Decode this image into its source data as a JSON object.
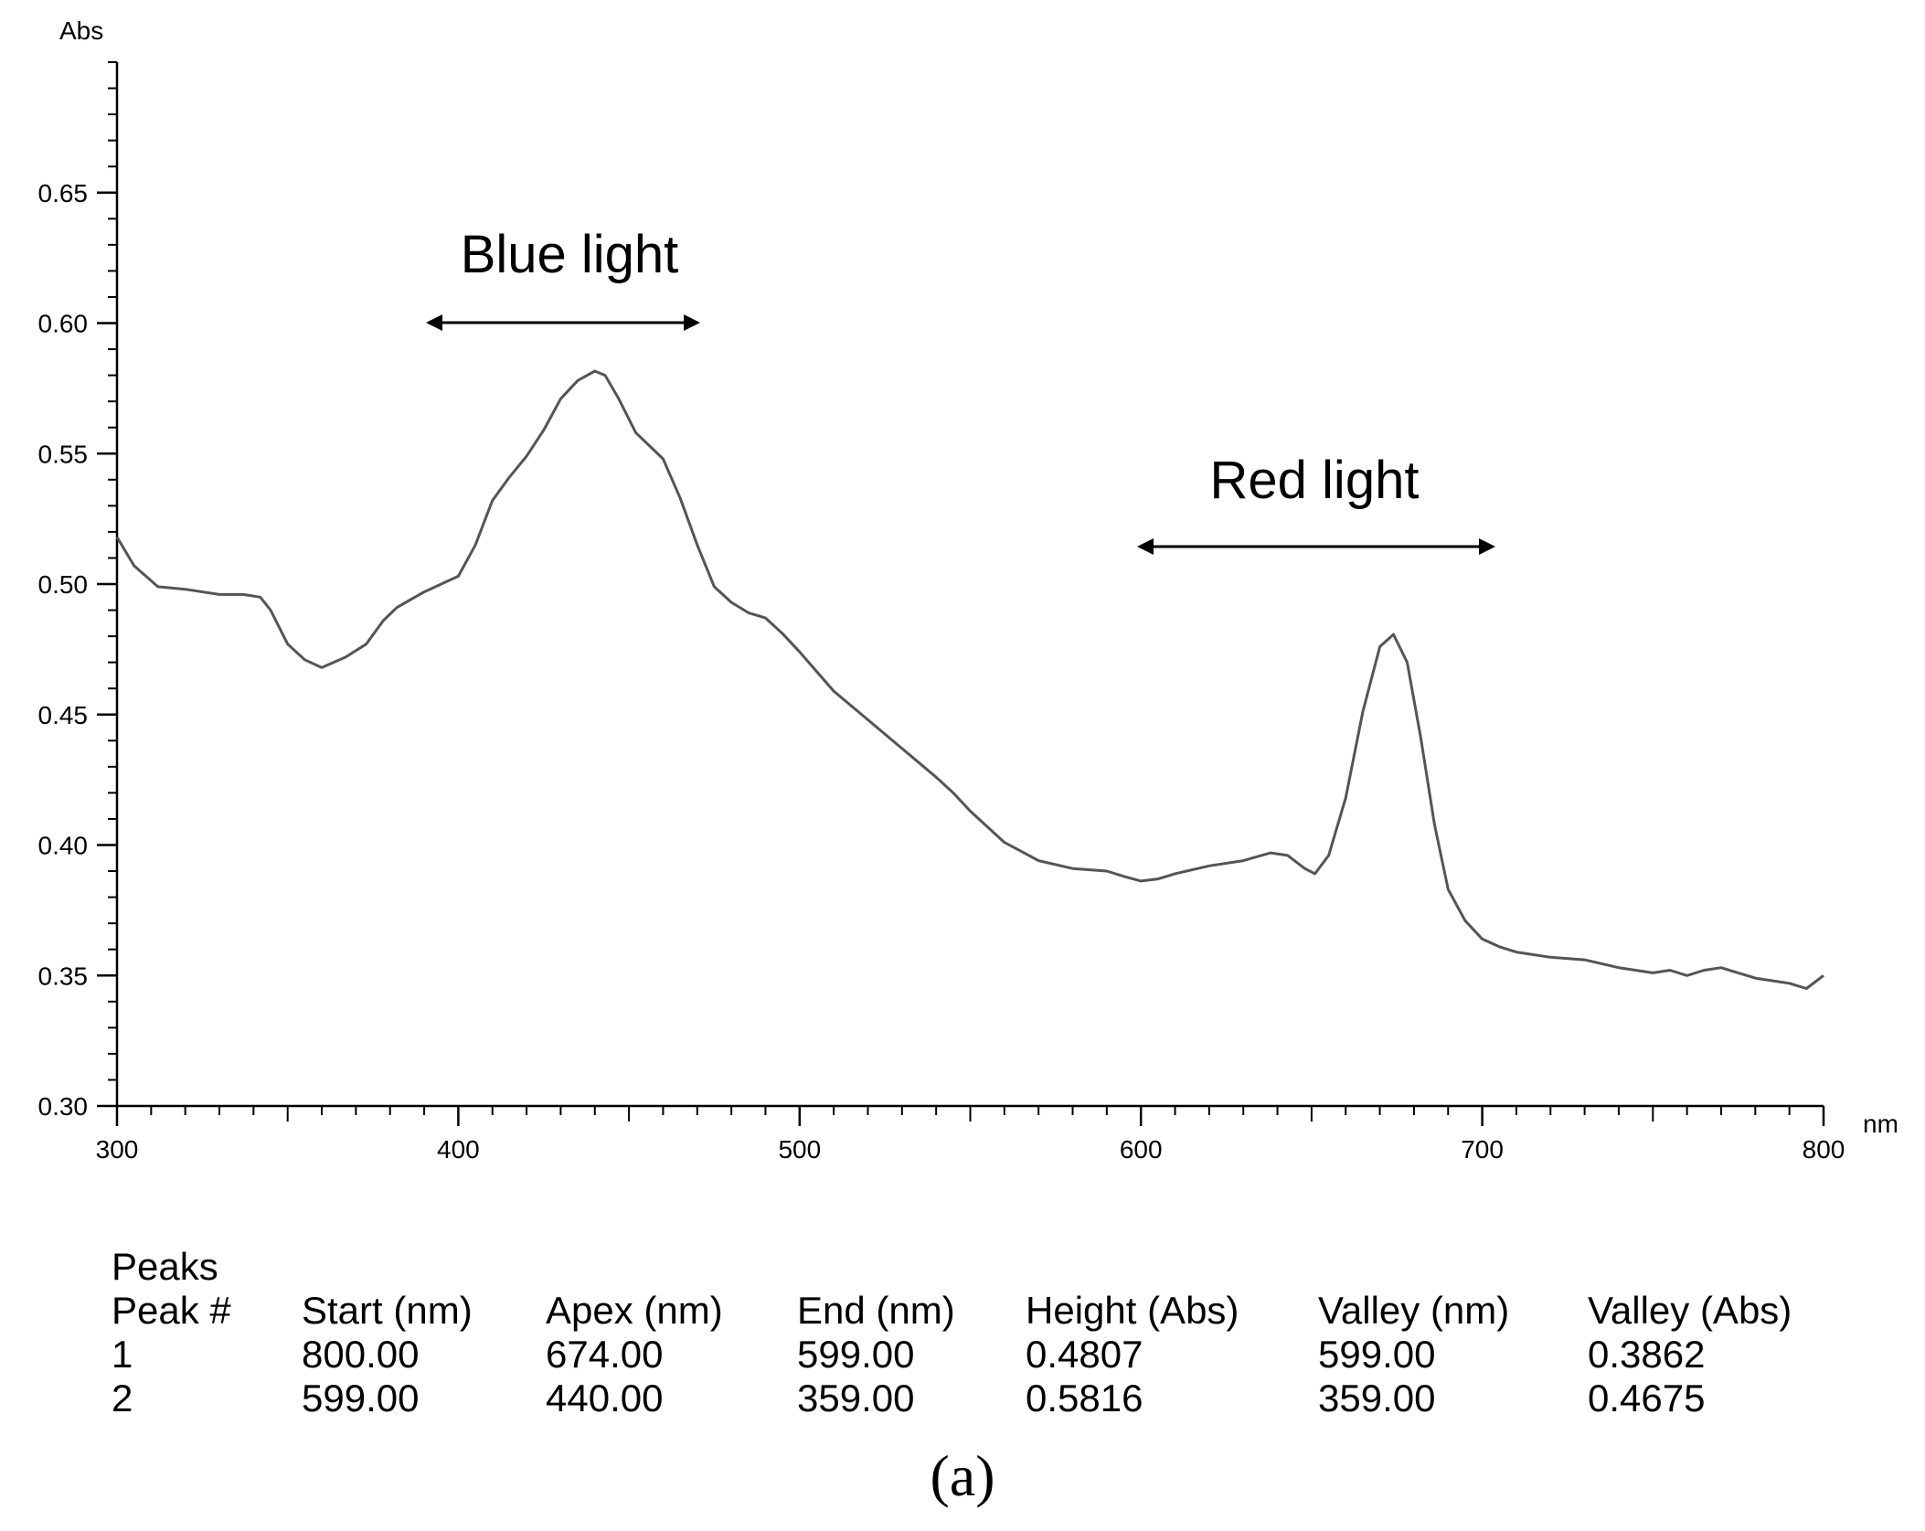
{
  "chart_data": {
    "type": "line",
    "xlabel": "nm",
    "ylabel": "Abs",
    "xlim": [
      300,
      800
    ],
    "ylim": [
      0.3,
      0.7
    ],
    "x_ticks": [
      300,
      400,
      500,
      600,
      700,
      800
    ],
    "y_ticks": [
      0.3,
      0.35,
      0.4,
      0.45,
      0.5,
      0.55,
      0.6,
      0.65
    ],
    "tick_labels_x": [
      "300",
      "400",
      "500",
      "600",
      "700",
      "800"
    ],
    "tick_labels_y": [
      "0.30",
      "0.35",
      "0.40",
      "0.45",
      "0.50",
      "0.55",
      "0.60",
      "0.65"
    ],
    "grid": false,
    "series": [
      {
        "x": [
          300,
          305,
          312,
          320,
          330,
          337,
          342,
          345,
          350,
          355,
          360,
          367,
          373,
          378,
          382,
          386,
          390,
          395,
          400,
          405,
          410,
          415,
          420,
          425,
          430,
          435,
          440,
          443,
          447,
          452,
          460,
          465,
          470,
          475,
          480,
          485,
          490,
          495,
          500,
          510,
          520,
          530,
          540,
          545,
          550,
          560,
          570,
          580,
          590,
          595,
          600,
          605,
          610,
          620,
          630,
          638,
          643,
          648,
          651,
          655,
          660,
          665,
          670,
          674,
          678,
          682,
          686,
          690,
          695,
          700,
          705,
          710,
          720,
          730,
          740,
          750,
          755,
          760,
          765,
          770,
          775,
          780,
          785,
          790,
          795,
          800
        ],
        "y": [
          0.518,
          0.507,
          0.499,
          0.498,
          0.496,
          0.496,
          0.495,
          0.49,
          0.477,
          0.471,
          0.468,
          0.472,
          0.477,
          0.486,
          0.491,
          0.494,
          0.497,
          0.5,
          0.503,
          0.515,
          0.532,
          0.541,
          0.549,
          0.559,
          0.571,
          0.578,
          0.5816,
          0.58,
          0.571,
          0.558,
          0.548,
          0.533,
          0.515,
          0.499,
          0.493,
          0.489,
          0.487,
          0.481,
          0.474,
          0.459,
          0.448,
          0.437,
          0.426,
          0.42,
          0.413,
          0.401,
          0.394,
          0.391,
          0.39,
          0.388,
          0.3862,
          0.387,
          0.389,
          0.392,
          0.394,
          0.397,
          0.396,
          0.391,
          0.389,
          0.396,
          0.418,
          0.451,
          0.476,
          0.4807,
          0.47,
          0.441,
          0.408,
          0.383,
          0.371,
          0.364,
          0.361,
          0.359,
          0.357,
          0.356,
          0.353,
          0.351,
          0.352,
          0.35,
          0.352,
          0.353,
          0.351,
          0.349,
          0.348,
          0.347,
          0.345,
          0.35
        ]
      }
    ],
    "annotations": [
      {
        "text": "Blue light",
        "x_range": [
          392,
          470
        ],
        "y": 0.602
      },
      {
        "text": "Red light",
        "x_range": [
          600,
          702
        ],
        "y": 0.516
      }
    ]
  },
  "annotations_text": {
    "blue": "Blue light",
    "red": "Red light"
  },
  "peaks": {
    "title": "Peaks",
    "headers": [
      "Peak #",
      "Start (nm)",
      "Apex (nm)",
      "End (nm)",
      "Height (Abs)",
      "Valley (nm)",
      "Valley (Abs)"
    ],
    "rows": [
      [
        "1",
        "800.00",
        "674.00",
        "599.00",
        "0.4807",
        "599.00",
        "0.3862"
      ],
      [
        "2",
        "599.00",
        "440.00",
        "359.00",
        "0.5816",
        "359.00",
        "0.4675"
      ]
    ]
  },
  "caption": "(a)",
  "colors": {
    "curve": "#555555",
    "axis": "#000000"
  }
}
